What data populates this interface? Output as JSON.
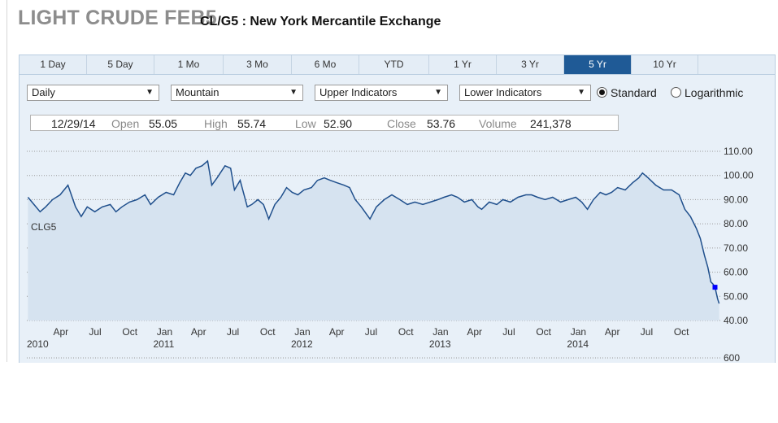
{
  "header": {
    "title": "LIGHT CRUDE FEB5",
    "subtitle": "CL/G5 : New York Mercantile Exchange"
  },
  "tabs": [
    {
      "label": "1 Day",
      "active": false
    },
    {
      "label": "5 Day",
      "active": false
    },
    {
      "label": "1 Mo",
      "active": false
    },
    {
      "label": "3 Mo",
      "active": false
    },
    {
      "label": "6 Mo",
      "active": false
    },
    {
      "label": "YTD",
      "active": false
    },
    {
      "label": "1 Yr",
      "active": false
    },
    {
      "label": "3 Yr",
      "active": false
    },
    {
      "label": "5 Yr",
      "active": true
    },
    {
      "label": "10 Yr",
      "active": false
    }
  ],
  "controls": {
    "frequency": "Daily",
    "timezone": "Mountain",
    "upper": "Upper Indicators",
    "lower": "Lower Indicators",
    "scale_standard": "Standard",
    "scale_log": "Logarithmic",
    "selected_scale": "Standard"
  },
  "quote": {
    "date": "12/29/14",
    "open_label": "Open",
    "open": "55.05",
    "high_label": "High",
    "high": "55.74",
    "low_label": "Low",
    "low": "52.90",
    "close_label": "Close",
    "close": "53.76",
    "volume_label": "Volume",
    "volume": "241,378"
  },
  "colors": {
    "line": "#1f4f8c",
    "fill": "#d6e3f0",
    "active_tab": "#1f5a96",
    "marker": "#0000ff"
  },
  "chart_data": {
    "type": "area",
    "series": [
      {
        "name": "CLG5"
      }
    ],
    "series_label": "CLG5",
    "ylim": [
      40,
      110
    ],
    "y_ticks": [
      "110.00",
      "100.00",
      "90.00",
      "80.00",
      "70.00",
      "60.00",
      "50.00",
      "40.00"
    ],
    "volume_tick": "600",
    "x_month_labels": [
      "Apr",
      "Jul",
      "Oct",
      "Jan",
      "Apr",
      "Jul",
      "Oct",
      "Jan",
      "Apr",
      "Jul",
      "Oct",
      "Jan",
      "Apr",
      "Jul",
      "Oct",
      "Jan",
      "Apr",
      "Jul",
      "Oct"
    ],
    "x_year_labels": [
      "2010",
      "2011",
      "2012",
      "2013",
      "2014"
    ],
    "points": [
      [
        "2010-01-04",
        91
      ],
      [
        "2010-01-20",
        88
      ],
      [
        "2010-02-05",
        85
      ],
      [
        "2010-02-20",
        87
      ],
      [
        "2010-03-10",
        90
      ],
      [
        "2010-03-30",
        92
      ],
      [
        "2010-04-20",
        96
      ],
      [
        "2010-05-10",
        87
      ],
      [
        "2010-05-25",
        83
      ],
      [
        "2010-06-10",
        87
      ],
      [
        "2010-06-30",
        85
      ],
      [
        "2010-07-20",
        87
      ],
      [
        "2010-08-10",
        88
      ],
      [
        "2010-08-25",
        85
      ],
      [
        "2010-09-10",
        87
      ],
      [
        "2010-09-30",
        89
      ],
      [
        "2010-10-20",
        90
      ],
      [
        "2010-11-10",
        92
      ],
      [
        "2010-11-25",
        88
      ],
      [
        "2010-12-15",
        91
      ],
      [
        "2011-01-05",
        93
      ],
      [
        "2011-01-25",
        92
      ],
      [
        "2011-02-10",
        97
      ],
      [
        "2011-02-25",
        101
      ],
      [
        "2011-03-10",
        100
      ],
      [
        "2011-03-25",
        103
      ],
      [
        "2011-04-10",
        104
      ],
      [
        "2011-04-25",
        106
      ],
      [
        "2011-05-06",
        96
      ],
      [
        "2011-05-20",
        99
      ],
      [
        "2011-06-10",
        104
      ],
      [
        "2011-06-25",
        103
      ],
      [
        "2011-07-05",
        94
      ],
      [
        "2011-07-20",
        98
      ],
      [
        "2011-08-08",
        87
      ],
      [
        "2011-08-20",
        88
      ],
      [
        "2011-09-05",
        90
      ],
      [
        "2011-09-20",
        88
      ],
      [
        "2011-10-04",
        82
      ],
      [
        "2011-10-20",
        88
      ],
      [
        "2011-11-05",
        91
      ],
      [
        "2011-11-20",
        95
      ],
      [
        "2011-12-05",
        93
      ],
      [
        "2011-12-20",
        92
      ],
      [
        "2012-01-05",
        94
      ],
      [
        "2012-01-25",
        95
      ],
      [
        "2012-02-10",
        98
      ],
      [
        "2012-02-28",
        99
      ],
      [
        "2012-03-15",
        98
      ],
      [
        "2012-04-01",
        97
      ],
      [
        "2012-04-20",
        96
      ],
      [
        "2012-05-05",
        95
      ],
      [
        "2012-05-20",
        90
      ],
      [
        "2012-06-05",
        87
      ],
      [
        "2012-06-28",
        82
      ],
      [
        "2012-07-15",
        87
      ],
      [
        "2012-08-05",
        90
      ],
      [
        "2012-08-25",
        92
      ],
      [
        "2012-09-15",
        90
      ],
      [
        "2012-10-05",
        88
      ],
      [
        "2012-10-25",
        89
      ],
      [
        "2012-11-15",
        88
      ],
      [
        "2012-12-05",
        89
      ],
      [
        "2012-12-25",
        90
      ],
      [
        "2013-01-10",
        91
      ],
      [
        "2013-01-30",
        92
      ],
      [
        "2013-02-15",
        91
      ],
      [
        "2013-03-05",
        89
      ],
      [
        "2013-03-25",
        90
      ],
      [
        "2013-04-10",
        87
      ],
      [
        "2013-04-20",
        86
      ],
      [
        "2013-05-10",
        89
      ],
      [
        "2013-05-30",
        88
      ],
      [
        "2013-06-15",
        90
      ],
      [
        "2013-07-05",
        89
      ],
      [
        "2013-07-25",
        91
      ],
      [
        "2013-08-15",
        92
      ],
      [
        "2013-08-30",
        92
      ],
      [
        "2013-09-15",
        91
      ],
      [
        "2013-10-05",
        90
      ],
      [
        "2013-10-25",
        91
      ],
      [
        "2013-11-15",
        89
      ],
      [
        "2013-12-05",
        90
      ],
      [
        "2013-12-25",
        91
      ],
      [
        "2014-01-10",
        89
      ],
      [
        "2014-01-25",
        86
      ],
      [
        "2014-02-10",
        90
      ],
      [
        "2014-02-28",
        93
      ],
      [
        "2014-03-15",
        92
      ],
      [
        "2014-03-30",
        93
      ],
      [
        "2014-04-15",
        95
      ],
      [
        "2014-05-05",
        94
      ],
      [
        "2014-05-25",
        97
      ],
      [
        "2014-06-10",
        99
      ],
      [
        "2014-06-20",
        101
      ],
      [
        "2014-07-05",
        99
      ],
      [
        "2014-07-25",
        96
      ],
      [
        "2014-08-15",
        94
      ],
      [
        "2014-09-05",
        94
      ],
      [
        "2014-09-25",
        92
      ],
      [
        "2014-10-10",
        86
      ],
      [
        "2014-10-25",
        83
      ],
      [
        "2014-11-10",
        78
      ],
      [
        "2014-11-20",
        74
      ],
      [
        "2014-12-01",
        67
      ],
      [
        "2014-12-10",
        62
      ],
      [
        "2014-12-18",
        56
      ],
      [
        "2014-12-24",
        55
      ],
      [
        "2014-12-29",
        53.76
      ],
      [
        "2015-01-05",
        49
      ],
      [
        "2015-01-09",
        47
      ]
    ],
    "marker_point": [
      "2014-12-29",
      53.76
    ]
  }
}
